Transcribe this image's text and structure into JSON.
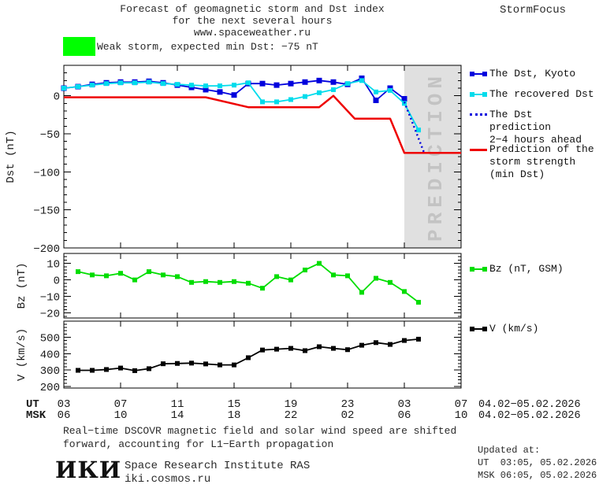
{
  "header": {
    "title_line1": "Forecast of geomagnetic storm and Dst index",
    "title_line2": "for the next several hours",
    "title_line3": "www.spaceweather.ru",
    "brand": "StormFocus"
  },
  "alert": {
    "swatch_color": "#00ff00",
    "text": "Weak storm, expected min Dst: −75 nT"
  },
  "prediction_overlay": {
    "label": "PREDICTION",
    "box_color": "#e0e0e0",
    "text_color": "#c3c3c3"
  },
  "axis_rows": {
    "ut_label": "UT",
    "msk_label": "MSK",
    "ut_values": [
      "03",
      "07",
      "11",
      "15",
      "19",
      "23",
      "03",
      "07"
    ],
    "msk_values": [
      "06",
      "10",
      "14",
      "18",
      "22",
      "02",
      "06",
      "10"
    ],
    "ut_date": "04.02−05.02.2026",
    "msk_date": "04.02−05.02.2026"
  },
  "legend": {
    "dst_kyoto": {
      "label": "The Dst, Kyoto",
      "color": "#0000dd"
    },
    "recovered": {
      "label": "The recovered Dst",
      "color": "#00dcec"
    },
    "prediction": {
      "label_line1": "The Dst prediction",
      "label_line2": "2−4 hours ahead",
      "color": "#0000dd"
    },
    "storm_strength": {
      "label_line1": "Prediction of the",
      "label_line2": "storm strength",
      "label_line3": "(min Dst)",
      "color": "#ee0000"
    },
    "bz": {
      "label": "Bz (nT, GSM)",
      "color": "#00dd00"
    },
    "v": {
      "label": "V (km/s)",
      "color": "#000000"
    }
  },
  "chart_data": [
    {
      "type": "line",
      "name": "dst",
      "title": "Forecast of geomagnetic storm and Dst index",
      "xlabel": "UT hours 04.02-05.02.2026",
      "ylabel": "Dst (nT)",
      "ylim": [
        -200,
        40
      ],
      "yticks": [
        0,
        -50,
        -100,
        -150,
        -200
      ],
      "y_minor": 10,
      "x_hours_lim": [
        3,
        31
      ],
      "x_major_hours": [
        3,
        7,
        11,
        15,
        19,
        23,
        27,
        31
      ],
      "grid": false,
      "legend_position": "right",
      "prediction_from_hour": 27,
      "series": [
        {
          "id": "dst-kyoto",
          "name": "The Dst, Kyoto",
          "color": "#0000dd",
          "style": "solid",
          "marker": 7,
          "x": [
            3,
            4,
            5,
            6,
            7,
            8,
            9,
            10,
            11,
            12,
            13,
            14,
            15,
            16,
            17,
            18,
            19,
            20,
            21,
            22,
            23,
            24,
            25,
            26,
            27
          ],
          "values": [
            10,
            12,
            15,
            17,
            18,
            18,
            19,
            17,
            14,
            11,
            8,
            5,
            1,
            16,
            16,
            14,
            16,
            18,
            20,
            18,
            15,
            23,
            -6,
            10,
            -4
          ]
        },
        {
          "id": "dst-recovered",
          "name": "The recovered Dst",
          "color": "#00dcec",
          "style": "solid",
          "marker": 6,
          "x": [
            3,
            4,
            5,
            6,
            7,
            8,
            9,
            10,
            11,
            12,
            13,
            14,
            15,
            16,
            17,
            18,
            19,
            20,
            21,
            22,
            23,
            24,
            25,
            26,
            27,
            28
          ],
          "values": [
            10,
            12,
            14,
            16,
            17,
            17,
            18,
            16,
            15,
            14,
            13,
            13,
            14,
            17,
            -8,
            -8,
            -5,
            -1,
            4,
            8,
            16,
            20,
            5,
            7,
            -10,
            -45
          ]
        },
        {
          "id": "dst-prediction",
          "name": "The Dst prediction 2−4 hours ahead",
          "color": "#0000dd",
          "style": "dotted",
          "marker": 0,
          "x": [
            27,
            28.4,
            31
          ],
          "values": [
            -8,
            -75,
            -75
          ]
        },
        {
          "id": "storm-strength",
          "name": "Prediction of the storm strength (min Dst)",
          "color": "#ee0000",
          "style": "solid",
          "width": 2.5,
          "marker": 0,
          "x": [
            3,
            13,
            16,
            21,
            22,
            23.5,
            26,
            27,
            31
          ],
          "values": [
            -2,
            -2,
            -15,
            -15,
            0,
            -30,
            -30,
            -75,
            -75
          ]
        }
      ]
    },
    {
      "type": "line",
      "name": "bz",
      "ylabel": "Bz (nT)",
      "ylim": [
        -23,
        16
      ],
      "yticks": [
        10,
        0,
        -10,
        -20
      ],
      "y_minor": 2,
      "x_hours_lim": [
        3,
        31
      ],
      "x_major_hours": [
        3,
        7,
        11,
        15,
        19,
        23,
        27,
        31
      ],
      "grid": false,
      "series": [
        {
          "id": "bz",
          "name": "Bz (nT, GSM)",
          "color": "#00dd00",
          "style": "solid",
          "marker": 6,
          "x": [
            4,
            5,
            6,
            7,
            8,
            9,
            10,
            11,
            12,
            13,
            14,
            15,
            16,
            17,
            18,
            19,
            20,
            21,
            22,
            23,
            24,
            25,
            26,
            27,
            28
          ],
          "values": [
            5,
            3,
            2.5,
            4,
            0,
            5,
            3,
            2,
            -1.5,
            -1,
            -1.5,
            -1,
            -2,
            -5,
            2,
            0,
            6,
            10,
            3,
            2.5,
            -7.5,
            1,
            -1.5,
            -7,
            -13.5
          ]
        }
      ]
    },
    {
      "type": "line",
      "name": "v",
      "ylabel": "V (km/s)",
      "ylim": [
        190,
        598
      ],
      "yticks": [
        500,
        400,
        300,
        200
      ],
      "y_minor": 20,
      "x_hours_lim": [
        3,
        31
      ],
      "x_major_hours": [
        3,
        7,
        11,
        15,
        19,
        23,
        27,
        31
      ],
      "grid": false,
      "series": [
        {
          "id": "v",
          "name": "V (km/s)",
          "color": "#000000",
          "style": "solid",
          "marker": 6,
          "x": [
            4,
            5,
            6,
            7,
            8,
            9,
            10,
            11,
            12,
            13,
            14,
            15,
            16,
            17,
            18,
            19,
            20,
            21,
            22,
            23,
            24,
            25,
            26,
            27,
            28
          ],
          "values": [
            298,
            298,
            303,
            312,
            296,
            308,
            338,
            340,
            342,
            337,
            331,
            331,
            375,
            422,
            427,
            432,
            418,
            442,
            432,
            424,
            451,
            467,
            456,
            480,
            488
          ]
        }
      ]
    }
  ],
  "footer": {
    "note_line1": "Real−time DSCOVR magnetic field and solar wind speed are shifted",
    "note_line2": "forward, accounting for L1−Earth propagation",
    "logo": "ИКИ",
    "institute": "Space Research Institute RAS",
    "site": "iki.cosmos.ru",
    "updated_label": "Updated at:",
    "updated_ut": "UT  03:05, 05.02.2026",
    "updated_msk": "MSK 06:05, 05.02.2026"
  }
}
